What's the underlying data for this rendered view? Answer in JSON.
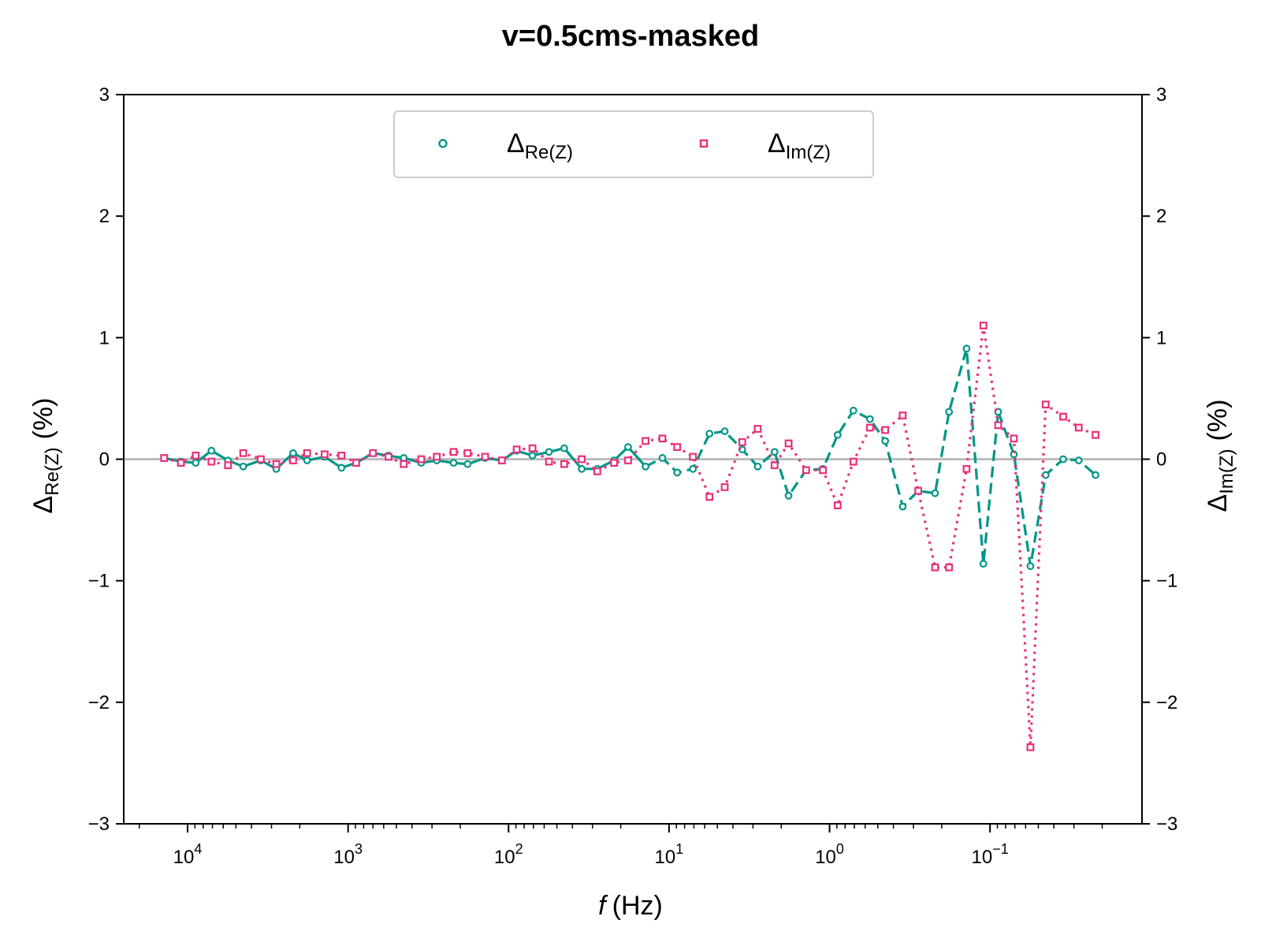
{
  "chart_data": {
    "type": "line",
    "title": "v=0.5cms-masked",
    "xlabel": {
      "var": "f",
      "unit": "(Hz)"
    },
    "ylabel_left": {
      "base": "Δ",
      "sub": "Re(Z)",
      "unit": "(%)"
    },
    "ylabel_right": {
      "base": "Δ",
      "sub": "Im(Z)",
      "unit": "(%)"
    },
    "x_scale": "log",
    "x_inverted": true,
    "xlim": [
      25000,
      0.0113
    ],
    "ylim": [
      -3,
      3
    ],
    "y_ticks": [
      {
        "value": -3,
        "label": "−3"
      },
      {
        "value": -2,
        "label": "−2"
      },
      {
        "value": -1,
        "label": "−1"
      },
      {
        "value": 0,
        "label": "0"
      },
      {
        "value": 1,
        "label": "1"
      },
      {
        "value": 2,
        "label": "2"
      },
      {
        "value": 3,
        "label": "3"
      }
    ],
    "x_ticks": [
      {
        "value": 10000,
        "base": "10",
        "exp": "4"
      },
      {
        "value": 1000,
        "base": "10",
        "exp": "3"
      },
      {
        "value": 100,
        "base": "10",
        "exp": "2"
      },
      {
        "value": 10,
        "base": "10",
        "exp": "1"
      },
      {
        "value": 1,
        "base": "10",
        "exp": "0"
      },
      {
        "value": 0.1,
        "base": "10",
        "exp": "−1"
      }
    ],
    "zero_line": true,
    "legend": {
      "placement": "top-center",
      "ncol": 2
    },
    "series": [
      {
        "name": "Re(Z)",
        "legend_base": "Δ",
        "legend_sub": "Re(Z)",
        "axis": "left",
        "color": "#009688",
        "marker": "circle",
        "x": [
          14000,
          11000,
          8900,
          7100,
          5600,
          4500,
          3500,
          2800,
          2200,
          1800,
          1400,
          1100,
          890,
          700,
          560,
          450,
          350,
          280,
          220,
          180,
          140,
          110,
          89,
          71,
          56,
          45,
          35,
          28,
          22,
          18,
          14,
          11,
          8.9,
          7.1,
          5.6,
          4.5,
          3.5,
          2.8,
          2.2,
          1.8,
          1.4,
          1.1,
          0.89,
          0.71,
          0.56,
          0.45,
          0.35,
          0.28,
          0.22,
          0.18,
          0.14,
          0.11,
          0.089,
          0.071,
          0.056,
          0.045,
          0.035,
          0.028,
          0.022
        ],
        "y": [
          0.01,
          -0.02,
          -0.03,
          0.07,
          -0.01,
          -0.06,
          -0.01,
          -0.08,
          0.05,
          -0.01,
          0.02,
          -0.07,
          -0.03,
          0.05,
          0.03,
          0.01,
          -0.03,
          -0.01,
          -0.03,
          -0.04,
          0.01,
          -0.01,
          0.07,
          0.03,
          0.06,
          0.09,
          -0.08,
          -0.08,
          -0.01,
          0.1,
          -0.06,
          0.01,
          -0.11,
          -0.08,
          0.21,
          0.23,
          0.08,
          -0.06,
          0.06,
          -0.3,
          -0.09,
          -0.08,
          0.2,
          0.4,
          0.33,
          0.15,
          -0.39,
          -0.26,
          -0.28,
          0.39,
          0.91,
          -0.86,
          0.39,
          0.04,
          -0.88,
          -0.13,
          0.0,
          -0.01,
          -0.13
        ],
        "segments": [
          {
            "from": 0,
            "to": 30,
            "style": "solid"
          },
          {
            "from": 30,
            "to": 58,
            "style": "dashed"
          }
        ]
      },
      {
        "name": "Im(Z)",
        "legend_base": "Δ",
        "legend_sub": "Im(Z)",
        "axis": "right",
        "color": "#e8307a",
        "marker": "square",
        "x": [
          14000,
          11000,
          8900,
          7100,
          5600,
          4500,
          3500,
          2800,
          2200,
          1800,
          1400,
          1100,
          890,
          700,
          560,
          450,
          350,
          280,
          220,
          180,
          140,
          110,
          89,
          71,
          56,
          45,
          35,
          28,
          22,
          18,
          14,
          11,
          8.9,
          7.1,
          5.6,
          4.5,
          3.5,
          2.8,
          2.2,
          1.8,
          1.4,
          1.1,
          0.89,
          0.71,
          0.56,
          0.45,
          0.35,
          0.28,
          0.22,
          0.18,
          0.14,
          0.11,
          0.089,
          0.071,
          0.056,
          0.045,
          0.035,
          0.028,
          0.022
        ],
        "y": [
          0.01,
          -0.03,
          0.03,
          -0.02,
          -0.05,
          0.05,
          0.0,
          -0.04,
          -0.01,
          0.05,
          0.04,
          0.03,
          -0.03,
          0.05,
          0.02,
          -0.04,
          0.0,
          0.02,
          0.06,
          0.05,
          0.02,
          -0.01,
          0.08,
          0.09,
          -0.02,
          -0.04,
          0.0,
          -0.1,
          -0.03,
          -0.01,
          0.15,
          0.17,
          0.1,
          0.02,
          -0.31,
          -0.23,
          0.14,
          0.25,
          -0.05,
          0.13,
          -0.09,
          -0.09,
          -0.38,
          -0.02,
          0.26,
          0.24,
          0.36,
          -0.26,
          -0.89,
          -0.89,
          -0.08,
          1.1,
          0.28,
          0.17,
          -2.37,
          0.45,
          0.35,
          0.26,
          0.2
        ],
        "segments": [
          {
            "from": 0,
            "to": 58,
            "style": "dotted"
          }
        ]
      }
    ]
  }
}
